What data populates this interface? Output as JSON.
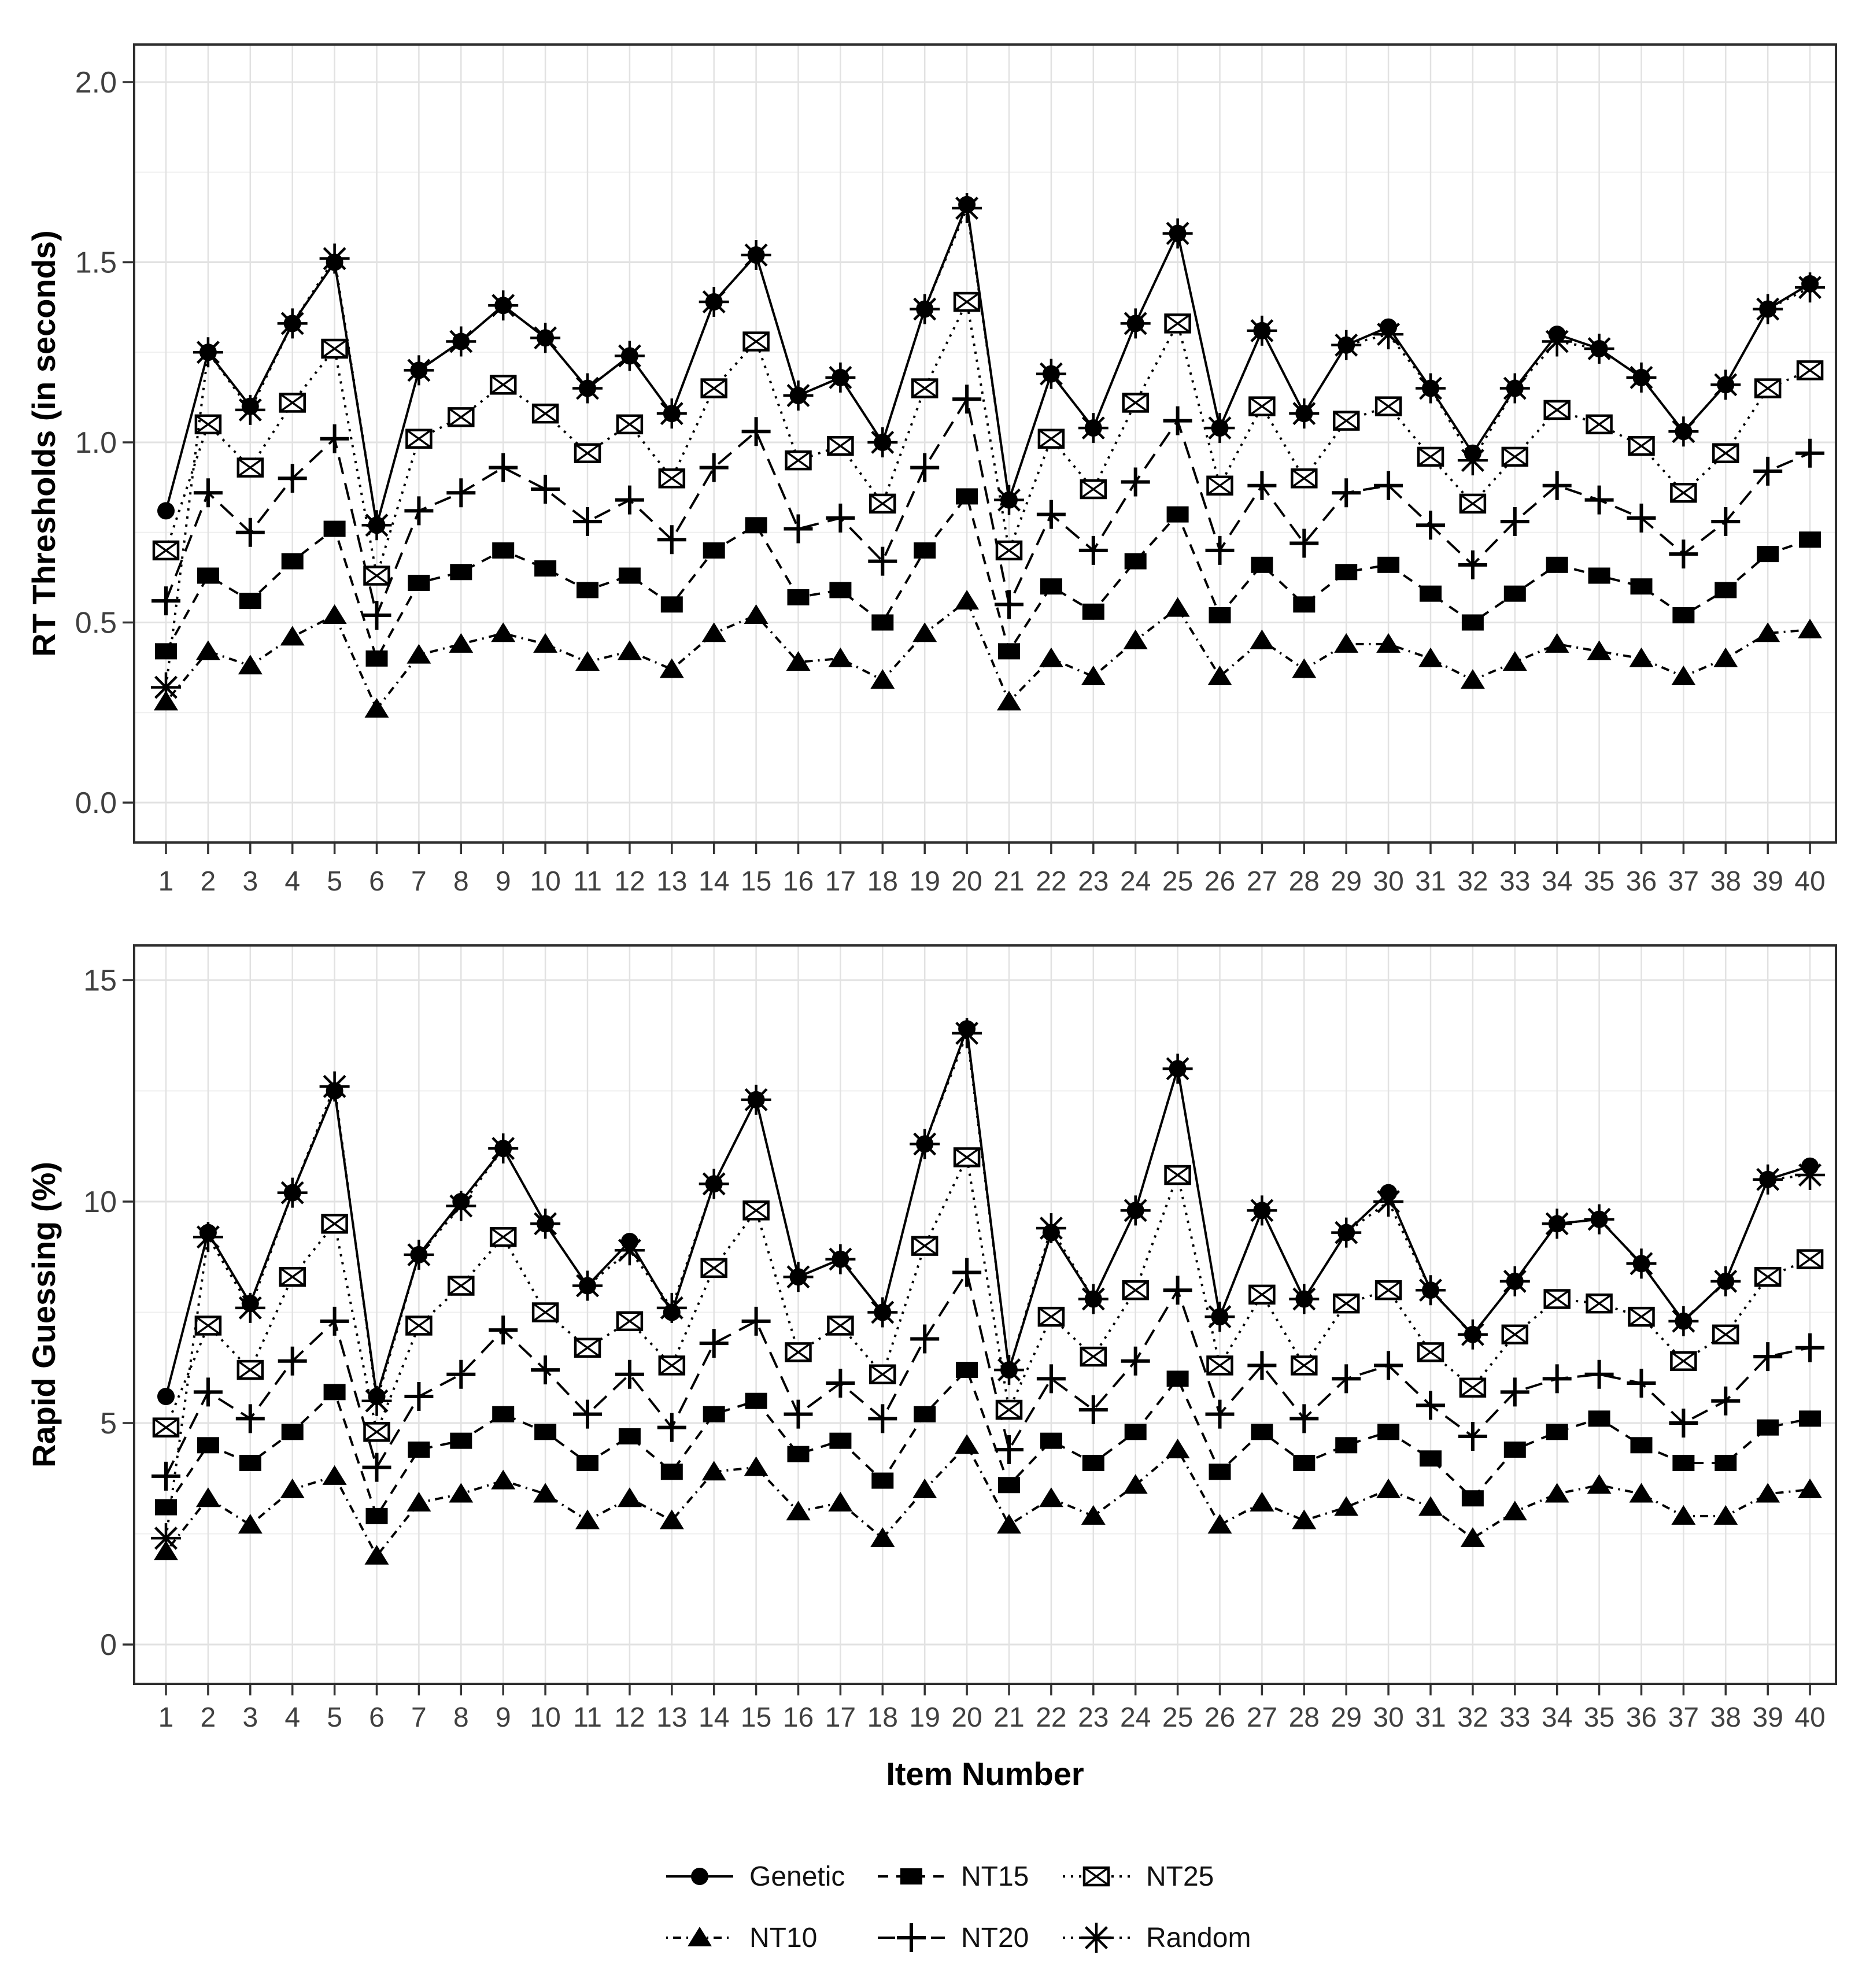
{
  "figure": {
    "background": "#ffffff",
    "colors": {
      "series_line": "#000000",
      "tick_label": "#404040",
      "axis_title": "#000000",
      "panel_border": "#2e2e2e",
      "tick_mark": "#333333",
      "grid_major": "#e2e2e2",
      "grid_minor": "#efefef"
    }
  },
  "legend": {
    "rows": [
      [
        "Genetic",
        "NT15",
        "NT25"
      ],
      [
        "NT10",
        "NT20",
        "Random"
      ]
    ]
  },
  "chart_data": [
    {
      "type": "line",
      "title": "",
      "xlabel": "",
      "ylabel": "RT Thresholds (in seconds)",
      "x": [
        1,
        2,
        3,
        4,
        5,
        6,
        7,
        8,
        9,
        10,
        11,
        12,
        13,
        14,
        15,
        16,
        17,
        18,
        19,
        20,
        21,
        22,
        23,
        24,
        25,
        26,
        27,
        28,
        29,
        30,
        31,
        32,
        33,
        34,
        35,
        36,
        37,
        38,
        39,
        40
      ],
      "ylim": [
        0.0,
        2.0
      ],
      "yticks": [
        0.0,
        0.5,
        1.0,
        1.5,
        2.0
      ],
      "ytick_labels": [
        "0.0",
        "0.5",
        "1.0",
        "1.5",
        "2.0"
      ],
      "yminor": [
        0.25,
        0.75,
        1.25,
        1.75
      ],
      "grid": true,
      "legend_position": "none",
      "series": [
        {
          "name": "Genetic",
          "marker": "circle-filled",
          "linetype": "solid",
          "values": [
            0.81,
            1.25,
            1.1,
            1.33,
            1.5,
            0.77,
            1.2,
            1.28,
            1.38,
            1.29,
            1.15,
            1.24,
            1.08,
            1.39,
            1.52,
            1.13,
            1.18,
            1.0,
            1.37,
            1.66,
            0.84,
            1.19,
            1.04,
            1.33,
            1.58,
            1.04,
            1.31,
            1.08,
            1.27,
            1.32,
            1.15,
            0.97,
            1.15,
            1.3,
            1.26,
            1.18,
            1.03,
            1.16,
            1.37,
            1.44
          ]
        },
        {
          "name": "NT10",
          "marker": "triangle-filled",
          "linetype": "dotdash",
          "values": [
            0.28,
            0.42,
            0.38,
            0.46,
            0.52,
            0.26,
            0.41,
            0.44,
            0.47,
            0.44,
            0.39,
            0.42,
            0.37,
            0.47,
            0.52,
            0.39,
            0.4,
            0.34,
            0.47,
            0.56,
            0.28,
            0.4,
            0.35,
            0.45,
            0.54,
            0.35,
            0.45,
            0.37,
            0.44,
            0.44,
            0.4,
            0.34,
            0.39,
            0.44,
            0.42,
            0.4,
            0.35,
            0.4,
            0.47,
            0.48
          ]
        },
        {
          "name": "NT15",
          "marker": "square-filled",
          "linetype": "dashed",
          "values": [
            0.42,
            0.63,
            0.56,
            0.67,
            0.76,
            0.4,
            0.61,
            0.64,
            0.7,
            0.65,
            0.59,
            0.63,
            0.55,
            0.7,
            0.77,
            0.57,
            0.59,
            0.5,
            0.7,
            0.85,
            0.42,
            0.6,
            0.53,
            0.67,
            0.8,
            0.52,
            0.66,
            0.55,
            0.64,
            0.66,
            0.58,
            0.5,
            0.58,
            0.66,
            0.63,
            0.6,
            0.52,
            0.59,
            0.69,
            0.73
          ]
        },
        {
          "name": "NT20",
          "marker": "plus",
          "linetype": "longdash",
          "values": [
            0.56,
            0.86,
            0.75,
            0.9,
            1.01,
            0.52,
            0.81,
            0.86,
            0.93,
            0.87,
            0.78,
            0.84,
            0.73,
            0.93,
            1.03,
            0.76,
            0.79,
            0.67,
            0.93,
            1.12,
            0.55,
            0.8,
            0.7,
            0.89,
            1.06,
            0.7,
            0.88,
            0.72,
            0.86,
            0.88,
            0.77,
            0.66,
            0.78,
            0.88,
            0.84,
            0.79,
            0.69,
            0.78,
            0.92,
            0.97
          ]
        },
        {
          "name": "NT25",
          "marker": "square-cross",
          "linetype": "dotted",
          "values": [
            0.7,
            1.05,
            0.93,
            1.11,
            1.26,
            0.63,
            1.01,
            1.07,
            1.16,
            1.08,
            0.97,
            1.05,
            0.9,
            1.15,
            1.28,
            0.95,
            0.99,
            0.83,
            1.15,
            1.39,
            0.7,
            1.01,
            0.87,
            1.11,
            1.33,
            0.88,
            1.1,
            0.9,
            1.06,
            1.1,
            0.96,
            0.83,
            0.96,
            1.09,
            1.05,
            0.99,
            0.86,
            0.97,
            1.15,
            1.2
          ]
        },
        {
          "name": "Random",
          "marker": "asterisk",
          "linetype": "dotted",
          "values": [
            0.32,
            1.25,
            1.09,
            1.33,
            1.51,
            0.77,
            1.2,
            1.28,
            1.38,
            1.29,
            1.15,
            1.24,
            1.08,
            1.39,
            1.52,
            1.13,
            1.18,
            1.0,
            1.37,
            1.65,
            0.84,
            1.19,
            1.04,
            1.33,
            1.58,
            1.04,
            1.31,
            1.08,
            1.27,
            1.3,
            1.15,
            0.95,
            1.15,
            1.28,
            1.26,
            1.18,
            1.03,
            1.16,
            1.37,
            1.43
          ]
        }
      ]
    },
    {
      "type": "line",
      "title": "",
      "xlabel": "Item Number",
      "ylabel": "Rapid Guessing (%)",
      "x": [
        1,
        2,
        3,
        4,
        5,
        6,
        7,
        8,
        9,
        10,
        11,
        12,
        13,
        14,
        15,
        16,
        17,
        18,
        19,
        20,
        21,
        22,
        23,
        24,
        25,
        26,
        27,
        28,
        29,
        30,
        31,
        32,
        33,
        34,
        35,
        36,
        37,
        38,
        39,
        40
      ],
      "ylim": [
        0,
        15
      ],
      "yticks": [
        0,
        5,
        10,
        15
      ],
      "ytick_labels": [
        "0",
        "5",
        "10",
        "15"
      ],
      "yminor": [
        2.5,
        7.5,
        12.5
      ],
      "grid": true,
      "legend_position": "bottom",
      "series": [
        {
          "name": "Genetic",
          "marker": "circle-filled",
          "linetype": "solid",
          "values": [
            5.6,
            9.3,
            7.7,
            10.2,
            12.5,
            5.6,
            8.8,
            10.0,
            11.2,
            9.5,
            8.1,
            9.1,
            7.5,
            10.4,
            12.3,
            8.3,
            8.7,
            7.5,
            11.3,
            13.9,
            6.2,
            9.3,
            7.8,
            9.8,
            13.0,
            7.4,
            9.8,
            7.8,
            9.3,
            10.2,
            8.0,
            7.0,
            8.2,
            9.5,
            9.6,
            8.6,
            7.3,
            8.2,
            10.5,
            10.8
          ]
        },
        {
          "name": "NT10",
          "marker": "triangle-filled",
          "linetype": "dotdash",
          "values": [
            2.1,
            3.3,
            2.7,
            3.5,
            3.8,
            2.0,
            3.2,
            3.4,
            3.7,
            3.4,
            2.8,
            3.3,
            2.8,
            3.9,
            4.0,
            3.0,
            3.2,
            2.4,
            3.5,
            4.5,
            2.7,
            3.3,
            2.9,
            3.6,
            4.4,
            2.7,
            3.2,
            2.8,
            3.1,
            3.5,
            3.1,
            2.4,
            3.0,
            3.4,
            3.6,
            3.4,
            2.9,
            2.9,
            3.4,
            3.5
          ]
        },
        {
          "name": "NT15",
          "marker": "square-filled",
          "linetype": "dashed",
          "values": [
            3.1,
            4.5,
            4.1,
            4.8,
            5.7,
            2.9,
            4.4,
            4.6,
            5.2,
            4.8,
            4.1,
            4.7,
            3.9,
            5.2,
            5.5,
            4.3,
            4.6,
            3.7,
            5.2,
            6.2,
            3.6,
            4.6,
            4.1,
            4.8,
            6.0,
            3.9,
            4.8,
            4.1,
            4.5,
            4.8,
            4.2,
            3.3,
            4.4,
            4.8,
            5.1,
            4.5,
            4.1,
            4.1,
            4.9,
            5.1
          ]
        },
        {
          "name": "NT20",
          "marker": "plus",
          "linetype": "longdash",
          "values": [
            3.8,
            5.7,
            5.1,
            6.4,
            7.3,
            4.0,
            5.6,
            6.1,
            7.1,
            6.2,
            5.2,
            6.1,
            4.9,
            6.8,
            7.3,
            5.2,
            5.9,
            5.1,
            6.9,
            8.4,
            4.4,
            6.0,
            5.3,
            6.4,
            8.0,
            5.2,
            6.3,
            5.1,
            6.0,
            6.3,
            5.4,
            4.7,
            5.7,
            6.0,
            6.1,
            5.9,
            5.0,
            5.5,
            6.5,
            6.7
          ]
        },
        {
          "name": "NT25",
          "marker": "square-cross",
          "linetype": "dotted",
          "values": [
            4.9,
            7.2,
            6.2,
            8.3,
            9.5,
            4.8,
            7.2,
            8.1,
            9.2,
            7.5,
            6.7,
            7.3,
            6.3,
            8.5,
            9.8,
            6.6,
            7.2,
            6.1,
            9.0,
            11.0,
            5.3,
            7.4,
            6.5,
            8.0,
            10.6,
            6.3,
            7.9,
            6.3,
            7.7,
            8.0,
            6.6,
            5.8,
            7.0,
            7.8,
            7.7,
            7.4,
            6.4,
            7.0,
            8.3,
            8.7
          ]
        },
        {
          "name": "Random",
          "marker": "asterisk",
          "linetype": "dotted",
          "values": [
            2.4,
            9.2,
            7.6,
            10.2,
            12.6,
            5.5,
            8.8,
            9.9,
            11.2,
            9.5,
            8.1,
            8.9,
            7.6,
            10.4,
            12.3,
            8.3,
            8.7,
            7.5,
            11.3,
            13.8,
            6.2,
            9.4,
            7.8,
            9.8,
            13.0,
            7.4,
            9.8,
            7.8,
            9.3,
            10.0,
            8.0,
            7.0,
            8.2,
            9.5,
            9.6,
            8.6,
            7.3,
            8.2,
            10.5,
            10.6
          ]
        }
      ]
    }
  ]
}
